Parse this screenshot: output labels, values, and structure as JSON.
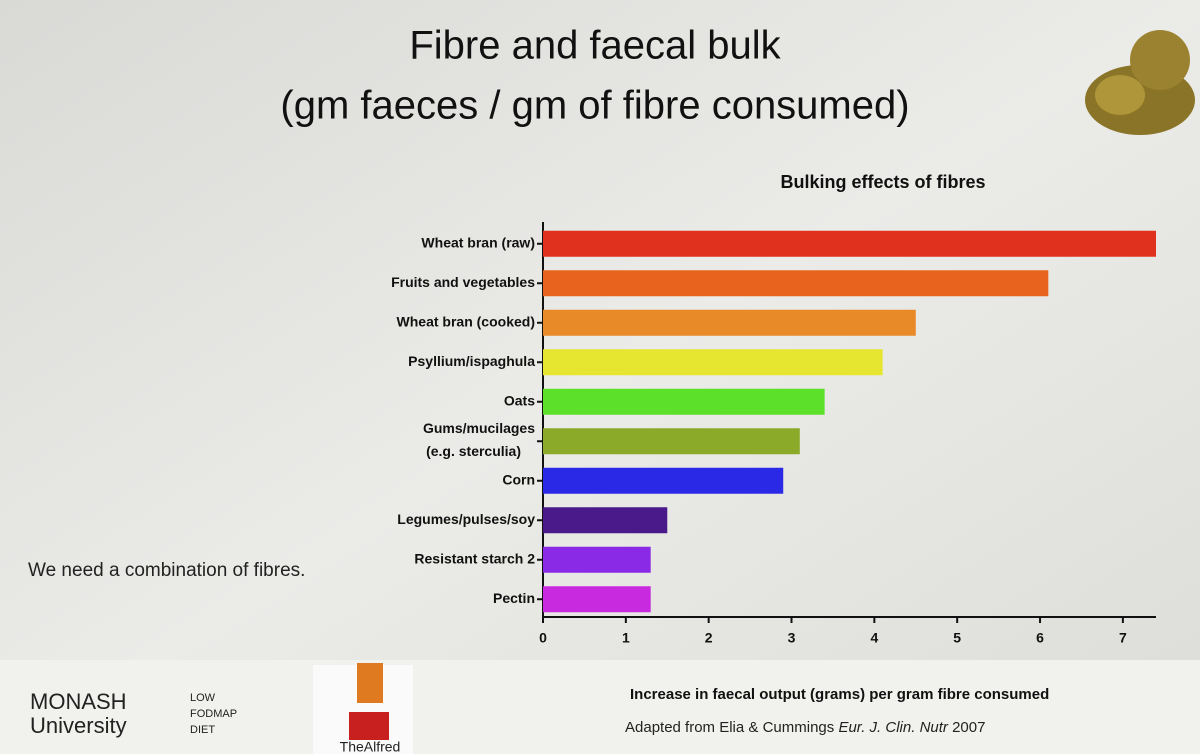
{
  "slide": {
    "title_lines": [
      "Fibre and faecal bulk",
      "(gm faeces / gm of fibre consumed)"
    ],
    "note": "We need a combination of fibres.",
    "source": {
      "text": "Adapted from Elia & Cummings",
      "journal": "Eur. J. Clin. Nutr",
      "year": "2007"
    },
    "logos": {
      "monash": [
        "MONASH",
        "University"
      ],
      "fodmap": [
        "LOW",
        "FODMAP",
        "DIET"
      ],
      "alfred": "TheAlfred"
    }
  },
  "chart_data": {
    "type": "barh",
    "title": "Bulking effects of fibres",
    "x_label": "Increase in faecal output (grams) per gram fibre consumed",
    "categories": [
      "Wheat bran (raw)",
      "Fruits and vegetables",
      "Wheat bran (cooked)",
      "Psyllium/ispaghula",
      "Oats",
      "Gums/mucilages\n(e.g. sterculia)",
      "Corn",
      "Legumes/pulses/soy",
      "Resistant starch 2",
      "Pectin"
    ],
    "values": [
      7.4,
      6.1,
      4.5,
      4.1,
      3.4,
      3.1,
      2.9,
      1.5,
      1.3,
      1.3
    ],
    "colors": [
      "#e0301e",
      "#e8641e",
      "#e88a28",
      "#e6e630",
      "#5ce02a",
      "#8caa2a",
      "#2a2ae6",
      "#4a1a8a",
      "#8a2ae6",
      "#c82ae0"
    ],
    "xlim": [
      0,
      7.4
    ],
    "xticks": [
      0,
      1,
      2,
      3,
      4,
      5,
      6,
      7
    ]
  }
}
